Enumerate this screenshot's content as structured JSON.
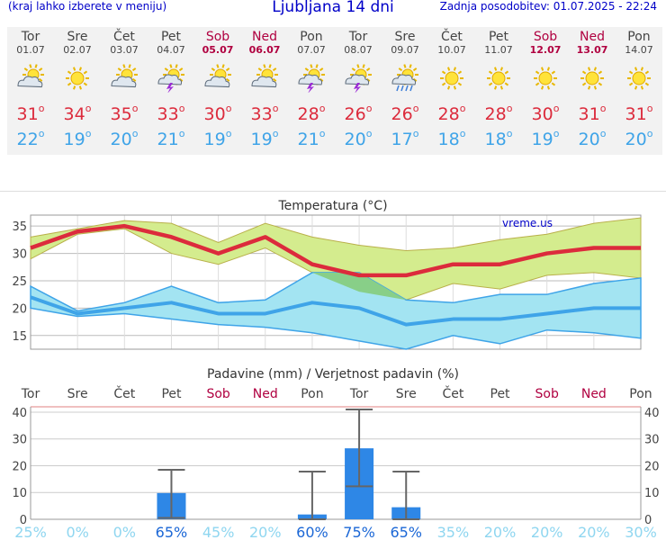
{
  "header": {
    "menu_hint": "(kraj lahko izberete v meniju)",
    "title": "Ljubljana 14 dni",
    "updated": "Zadnja posodobitev: 01.07.2025 - 22:24"
  },
  "days": [
    {
      "name": "Tor",
      "date": "01.07",
      "icon": "sun-cloud-icon",
      "tmax": "31",
      "tmin": "22",
      "weekend": false
    },
    {
      "name": "Sre",
      "date": "02.07",
      "icon": "sun-icon",
      "tmax": "34",
      "tmin": "19",
      "weekend": false
    },
    {
      "name": "Čet",
      "date": "03.07",
      "icon": "sun-cloud-icon",
      "tmax": "35",
      "tmin": "20",
      "weekend": false
    },
    {
      "name": "Pet",
      "date": "04.07",
      "icon": "thunderstorm-sun-icon",
      "tmax": "33",
      "tmin": "21",
      "weekend": false
    },
    {
      "name": "Sob",
      "date": "05.07",
      "icon": "sun-cloud-icon",
      "tmax": "30",
      "tmin": "19",
      "weekend": true
    },
    {
      "name": "Ned",
      "date": "06.07",
      "icon": "sun-cloud-icon",
      "tmax": "33",
      "tmin": "19",
      "weekend": true
    },
    {
      "name": "Pon",
      "date": "07.07",
      "icon": "thunderstorm-sun-icon",
      "tmax": "28",
      "tmin": "21",
      "weekend": false
    },
    {
      "name": "Tor",
      "date": "08.07",
      "icon": "thunderstorm-sun-icon",
      "tmax": "26",
      "tmin": "20",
      "weekend": false
    },
    {
      "name": "Sre",
      "date": "09.07",
      "icon": "sun-rain-icon",
      "tmax": "26",
      "tmin": "17",
      "weekend": false
    },
    {
      "name": "Čet",
      "date": "10.07",
      "icon": "sun-icon",
      "tmax": "28",
      "tmin": "18",
      "weekend": false
    },
    {
      "name": "Pet",
      "date": "11.07",
      "icon": "sun-icon",
      "tmax": "28",
      "tmin": "18",
      "weekend": false
    },
    {
      "name": "Sob",
      "date": "12.07",
      "icon": "sun-icon",
      "tmax": "30",
      "tmin": "19",
      "weekend": true
    },
    {
      "name": "Ned",
      "date": "13.07",
      "icon": "sun-icon",
      "tmax": "31",
      "tmin": "20",
      "weekend": true
    },
    {
      "name": "Pon",
      "date": "14.07",
      "icon": "sun-icon",
      "tmax": "31",
      "tmin": "20",
      "weekend": false
    }
  ],
  "colors": {
    "max": "#dc2b3c",
    "min": "#3fa4e8",
    "max_band": "#d4ec8e",
    "min_band": "#a3e4f2",
    "overlap": "#88cf88",
    "bar": "#2e87e6",
    "weekend": "#b00040",
    "prob_high": "#1b67d6",
    "prob_low": "#8fd6f0"
  },
  "chart_data": [
    {
      "type": "line",
      "title": "Temperatura (°C)",
      "watermark": "vreme.us",
      "categories": [
        "01.07",
        "02.07",
        "03.07",
        "04.07",
        "05.07",
        "06.07",
        "07.07",
        "08.07",
        "09.07",
        "10.07",
        "11.07",
        "12.07",
        "13.07",
        "14.07"
      ],
      "ylim": [
        12.5,
        37
      ],
      "yticks": [
        15,
        20,
        25,
        30,
        35
      ],
      "grid": true,
      "series": [
        {
          "name": "max",
          "values": [
            31,
            34,
            35,
            33,
            30,
            33,
            28,
            26,
            26,
            28,
            28,
            30,
            31,
            31
          ]
        },
        {
          "name": "max_low",
          "values": [
            29,
            33.5,
            34.5,
            30,
            28,
            31,
            26.5,
            23,
            21.5,
            24.5,
            23.5,
            26,
            26.5,
            25.5
          ]
        },
        {
          "name": "max_high",
          "values": [
            33,
            34.5,
            36,
            35.5,
            32,
            35.5,
            33,
            31.5,
            30.5,
            31,
            32.5,
            33.5,
            35.5,
            36.5
          ]
        },
        {
          "name": "min",
          "values": [
            22,
            19,
            20,
            21,
            19,
            19,
            21,
            20,
            17,
            18,
            18,
            19,
            20,
            20
          ]
        },
        {
          "name": "min_low",
          "values": [
            20,
            18.5,
            19,
            18,
            17,
            16.5,
            15.5,
            14,
            12.5,
            15,
            13.5,
            16,
            15.5,
            14.5
          ]
        },
        {
          "name": "min_high",
          "values": [
            24,
            19.5,
            21,
            24,
            21,
            21.5,
            26.5,
            26.5,
            21.5,
            21,
            22.5,
            22.5,
            24.5,
            25.5
          ]
        }
      ]
    },
    {
      "type": "bar",
      "title": "Padavine (mm) / Verjetnost padavin (%)",
      "categories": [
        "Tor",
        "Sre",
        "Čet",
        "Pet",
        "Sob",
        "Ned",
        "Pon",
        "Tor",
        "Sre",
        "Čet",
        "Pet",
        "Sob",
        "Ned",
        "Pon"
      ],
      "weekend": [
        false,
        false,
        false,
        false,
        true,
        true,
        false,
        false,
        false,
        false,
        false,
        true,
        true,
        false
      ],
      "ylim": [
        0,
        42
      ],
      "yticks": [
        0,
        10,
        20,
        30,
        40
      ],
      "values": [
        0,
        0,
        0,
        9.8,
        0,
        0,
        1.8,
        26.5,
        4.5,
        0,
        0,
        0,
        0,
        0
      ],
      "error_low": [
        0,
        0,
        0,
        0.5,
        0,
        0,
        0,
        12.3,
        0,
        0,
        0,
        0,
        0,
        0
      ],
      "error_high": [
        0,
        0,
        0,
        18.5,
        0,
        0,
        17.8,
        41,
        17.8,
        0,
        0,
        0,
        0,
        0
      ],
      "probability": [
        "25%",
        "0%",
        "0%",
        "65%",
        "45%",
        "20%",
        "60%",
        "75%",
        "65%",
        "35%",
        "20%",
        "20%",
        "20%",
        "30%"
      ],
      "probability_strong": [
        false,
        false,
        false,
        true,
        false,
        false,
        true,
        true,
        true,
        false,
        false,
        false,
        false,
        false
      ]
    }
  ]
}
